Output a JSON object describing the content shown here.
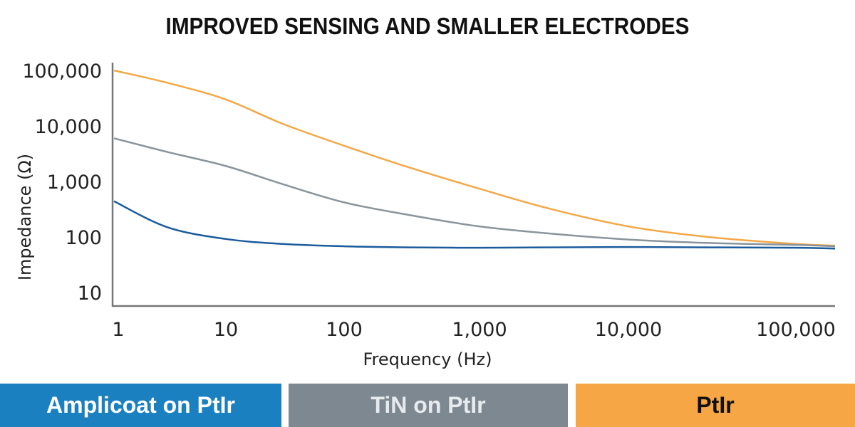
{
  "chart_data": {
    "type": "line",
    "title": "IMPROVED SENSING AND SMALLER ELECTRODES",
    "xlabel": "Frequency (Hz)",
    "ylabel": "Impedance (Ω)",
    "x_scale": "log",
    "y_scale": "log",
    "xlim": [
      1,
      200000
    ],
    "ylim": [
      5.7,
      120000
    ],
    "x_ticks": [
      1,
      10,
      100,
      1000,
      10000,
      100000
    ],
    "x_tick_labels": [
      "1",
      "10",
      "100",
      "1,000",
      "10,000",
      "100,000"
    ],
    "y_ticks": [
      10,
      100,
      1000,
      10000,
      100000
    ],
    "y_tick_labels": [
      "10",
      "100",
      "1,000",
      "10,000",
      "100,000"
    ],
    "grid": false,
    "legend_placement": "bottom",
    "x": [
      1,
      3,
      10,
      30,
      100,
      300,
      1000,
      3000,
      10000,
      30000,
      100000,
      200000
    ],
    "series": [
      {
        "name": "Amplicoat on PtIr",
        "color": "#1a5b9c",
        "legend_color": "#1a80c0",
        "values": [
          440,
          150,
          92,
          75,
          68,
          65,
          64,
          65,
          66,
          65,
          64,
          62
        ]
      },
      {
        "name": "TiN on PtIr",
        "color": "#8a949b",
        "legend_color": "#7e8890",
        "values": [
          6000,
          3400,
          1900,
          900,
          420,
          250,
          155,
          115,
          90,
          78,
          72,
          68
        ]
      },
      {
        "name": "PtIr",
        "color": "#f3a847",
        "legend_color": "#f7a646",
        "values": [
          100000,
          60000,
          30000,
          11000,
          4400,
          1800,
          740,
          320,
          155,
          100,
          75,
          70
        ]
      }
    ]
  }
}
